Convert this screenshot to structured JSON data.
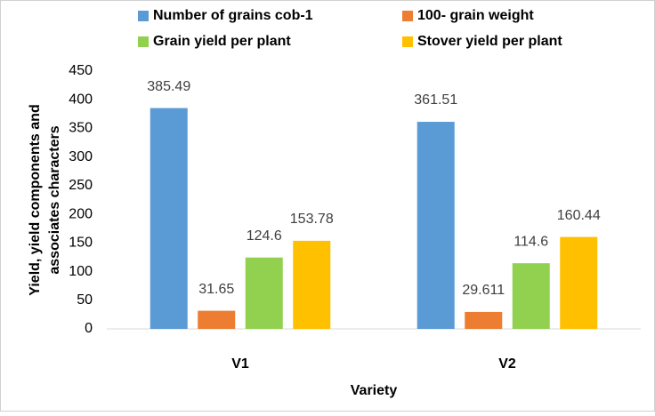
{
  "chart_data": {
    "type": "bar",
    "categories": [
      "V1",
      "V2"
    ],
    "series": [
      {
        "name": "Number of grains cob-1",
        "color": "#5b9bd5",
        "values": [
          385.49,
          361.51
        ]
      },
      {
        "name": "100- grain weight",
        "color": "#ed7d31",
        "values": [
          31.65,
          29.611
        ]
      },
      {
        "name": "Grain yield per plant",
        "color": "#92d050",
        "values": [
          124.6,
          114.6
        ]
      },
      {
        "name": "Stover yield per plant",
        "color": "#ffc000",
        "values": [
          153.78,
          160.44
        ]
      }
    ],
    "xlabel": "Variety",
    "ylabel_lines": [
      "Yield, yield components and",
      "associates characters"
    ],
    "ylim": [
      0,
      450
    ],
    "yticks": [
      0,
      50,
      100,
      150,
      200,
      250,
      300,
      350,
      400,
      450
    ],
    "grid": false,
    "legend": "top"
  }
}
